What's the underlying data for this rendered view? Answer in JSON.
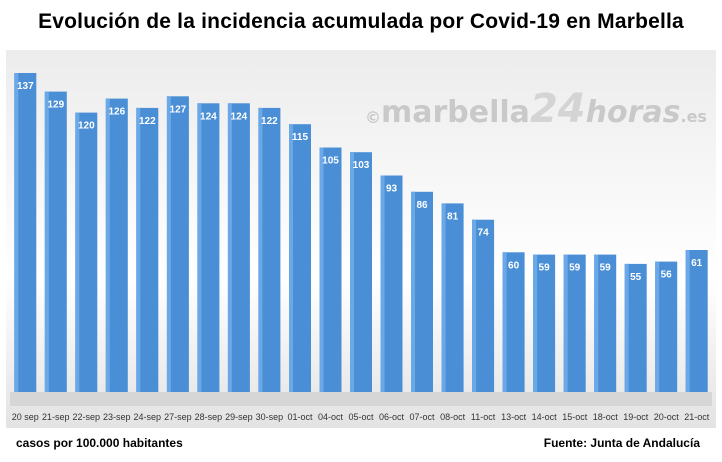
{
  "chart_data": {
    "type": "bar",
    "title": "Evolución de la incidencia acumulada por Covid-19 en Marbella",
    "categories": [
      "20 sep",
      "21-sep",
      "22-sep",
      "23-sep",
      "24-sep",
      "27-sep",
      "28-sep",
      "29-sep",
      "30-sep",
      "01-oct",
      "04-oct",
      "05-oct",
      "06-oct",
      "07-oct",
      "08-oct",
      "11-oct",
      "13-oct",
      "14-oct",
      "15-oct",
      "18-oct",
      "19-oct",
      "20-oct",
      "21-oct"
    ],
    "values": [
      137,
      129,
      120,
      126,
      122,
      127,
      124,
      124,
      122,
      115,
      105,
      103,
      93,
      86,
      81,
      74,
      60,
      59,
      59,
      59,
      55,
      56,
      61
    ],
    "ylim": [
      0,
      140
    ],
    "bar_color": "#4a8fd6",
    "label_color": "#ffffff",
    "grid": false
  },
  "footer": {
    "left": "casos por 100.000 habitantes",
    "right": "Fuente: Junta de Andalucía"
  },
  "watermark": {
    "copyright": "©",
    "part1": "marbella",
    "part2": "24",
    "part3": "horas",
    "part4": ".es"
  }
}
